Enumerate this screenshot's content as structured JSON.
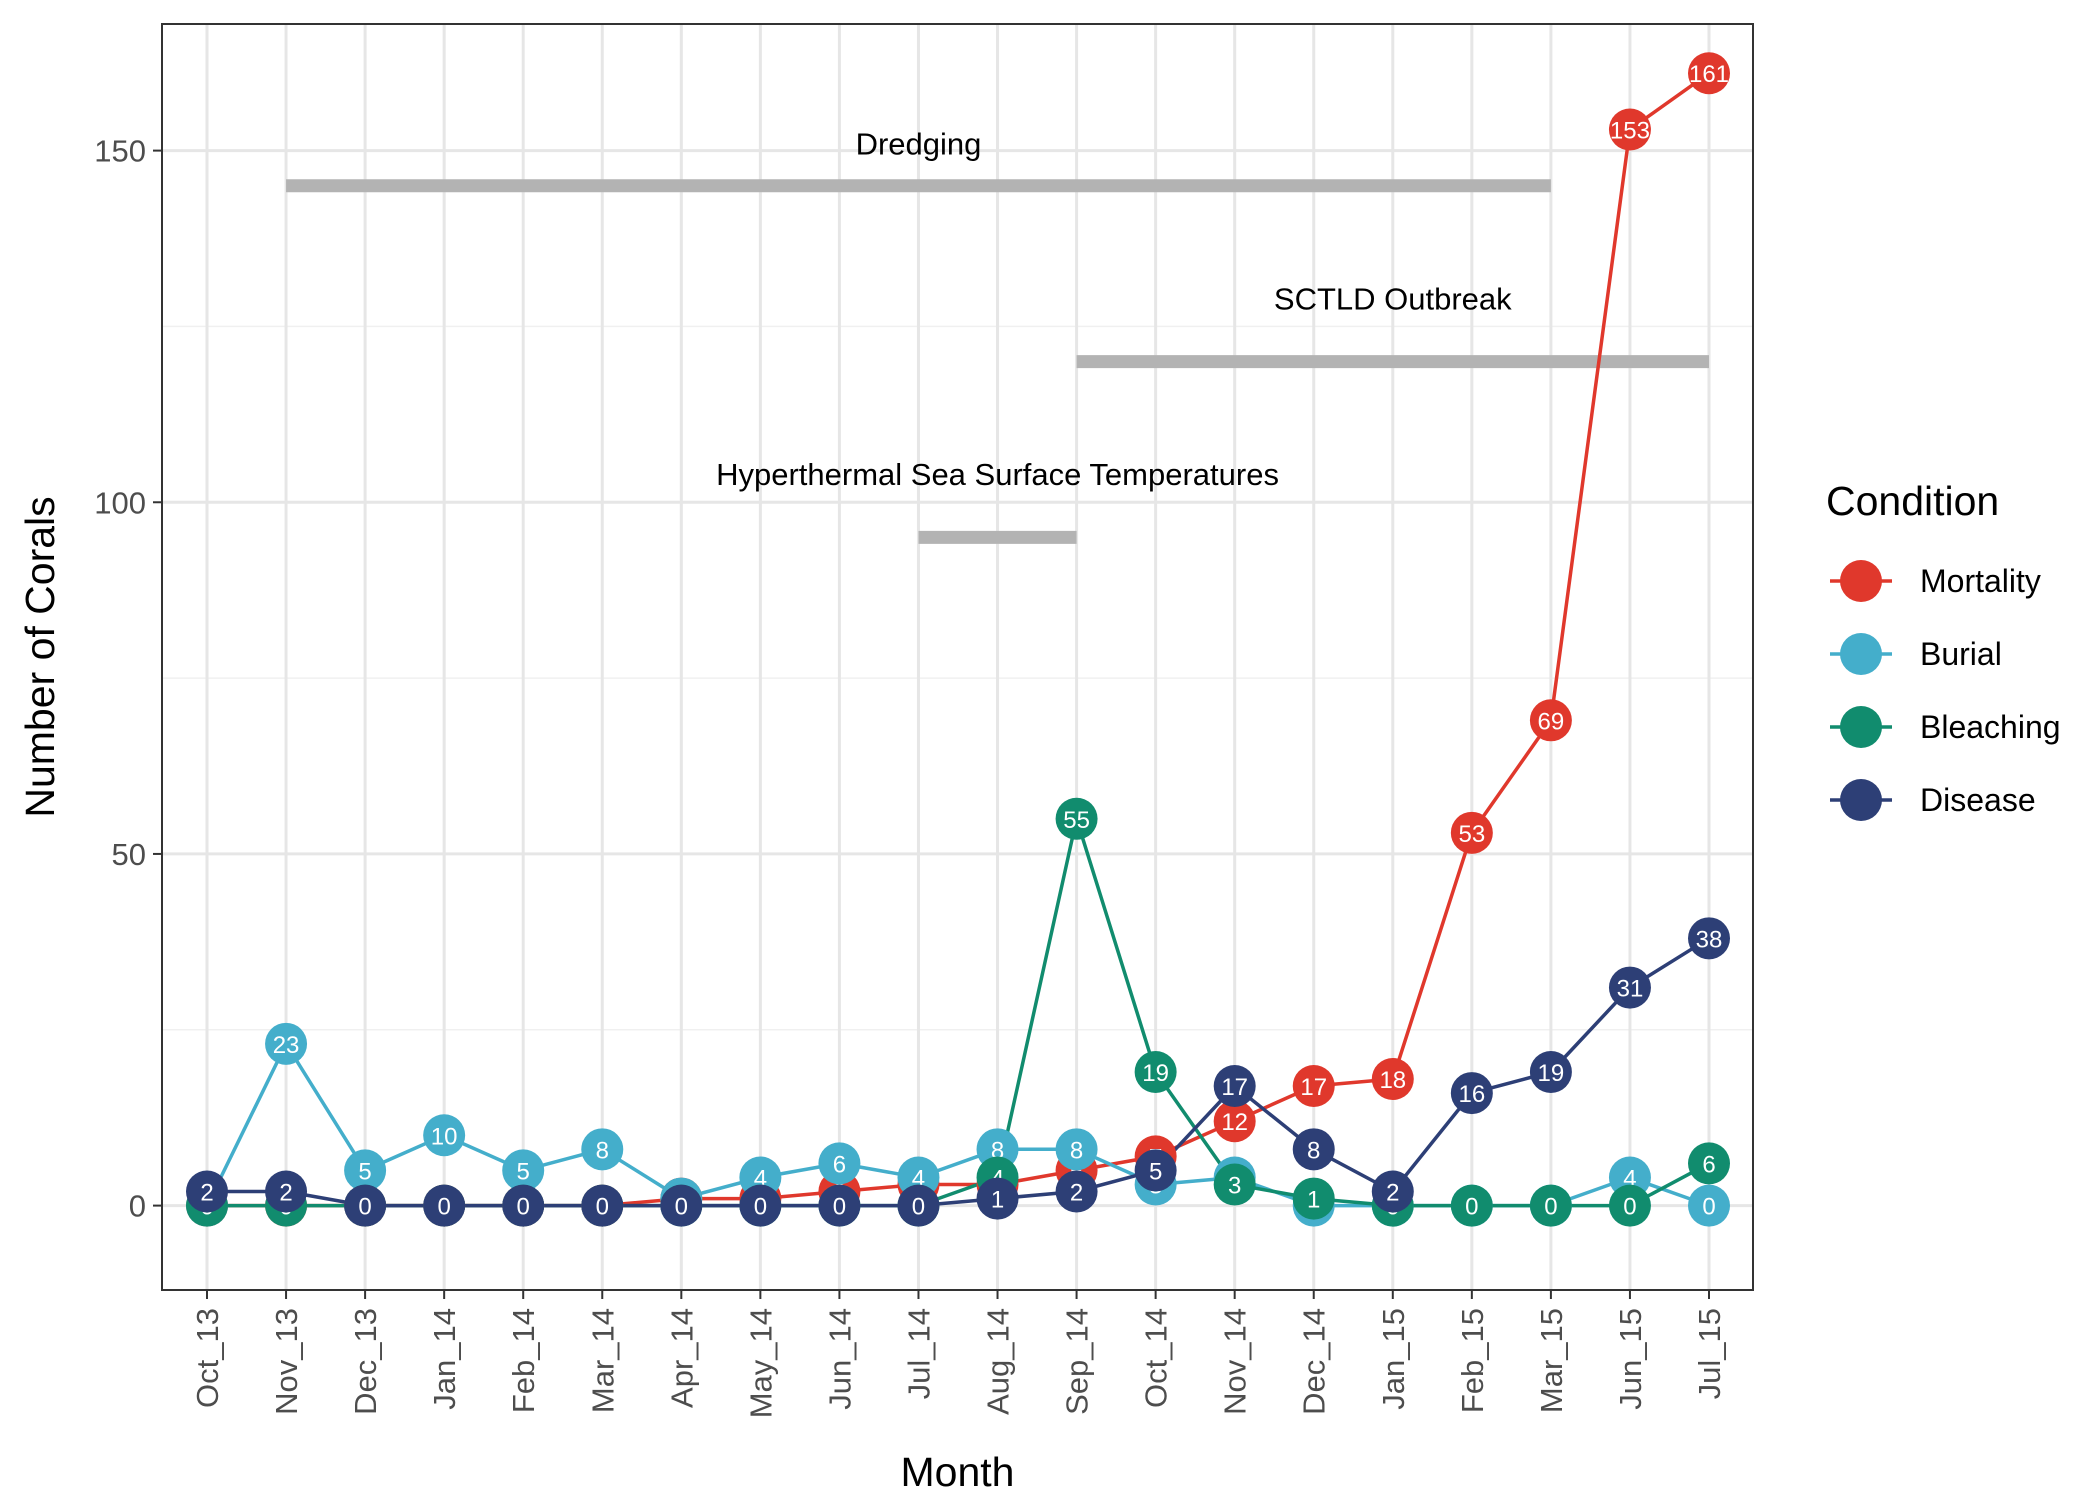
{
  "chart_data": {
    "type": "line",
    "xlabel": "Month",
    "ylabel": "Number of Corals",
    "categories": [
      "Oct_13",
      "Nov_13",
      "Dec_13",
      "Jan_14",
      "Feb_14",
      "Mar_14",
      "Apr_14",
      "May_14",
      "Jun_14",
      "Jul_14",
      "Aug_14",
      "Sep_14",
      "Oct_14",
      "Nov_14",
      "Dec_14",
      "Jan_15",
      "Feb_15",
      "Mar_15",
      "Jun_15",
      "Jul_15"
    ],
    "ylim": [
      -12,
      168
    ],
    "yticks": [
      0,
      50,
      100,
      150
    ],
    "grid": true,
    "legend": {
      "title": "Condition",
      "position": "right"
    },
    "series": [
      {
        "name": "Mortality",
        "color": "#E0382C",
        "values": [
          0,
          0,
          0,
          0,
          0,
          0,
          1,
          1,
          2,
          3,
          3,
          5,
          7,
          12,
          17,
          18,
          53,
          69,
          153,
          161
        ]
      },
      {
        "name": "Burial",
        "color": "#44AECB",
        "values": [
          0,
          23,
          5,
          10,
          5,
          8,
          1,
          4,
          6,
          4,
          8,
          8,
          3,
          4,
          0,
          0,
          0,
          0,
          4,
          0
        ]
      },
      {
        "name": "Bleaching",
        "color": "#118C6E",
        "values": [
          0,
          0,
          0,
          0,
          0,
          0,
          0,
          0,
          0,
          0,
          4,
          55,
          19,
          3,
          1,
          0,
          0,
          0,
          0,
          6
        ]
      },
      {
        "name": "Disease",
        "color": "#2D3F76",
        "values": [
          2,
          2,
          0,
          0,
          0,
          0,
          0,
          0,
          0,
          0,
          1,
          2,
          5,
          17,
          8,
          2,
          16,
          19,
          31,
          38
        ]
      }
    ],
    "annotations": [
      {
        "label": "Dredging",
        "from": "Nov_13",
        "to": "Mar_15",
        "y": 145,
        "label_y": 151,
        "label_at": "Jul_14"
      },
      {
        "label": "SCTLD Outbreak",
        "from": "Sep_14",
        "to": "Jul_15",
        "y": 120,
        "label_y": 129,
        "label_at": "Jan_15"
      },
      {
        "label": "Hyperthermal Sea Surface Temperatures",
        "from": "Jul_14",
        "to": "Sep_14",
        "y": 95,
        "label_y": 104,
        "label_at": "Jul_14"
      }
    ],
    "annotation_color": "#B3B3B3"
  }
}
